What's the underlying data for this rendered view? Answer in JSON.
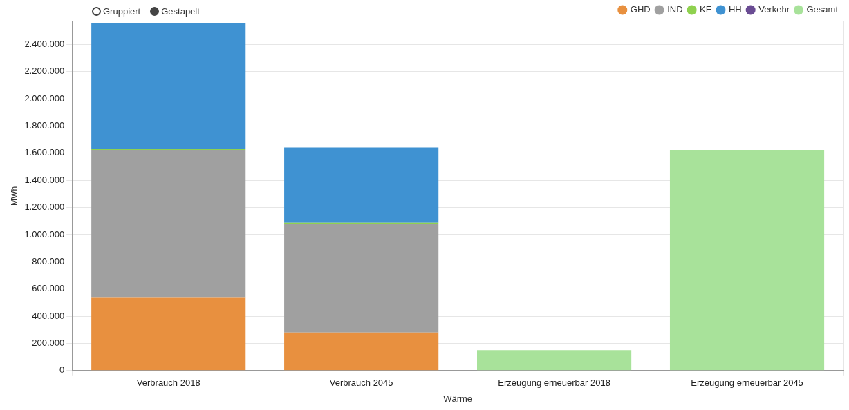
{
  "chart_data": {
    "type": "bar",
    "stacked": true,
    "xlabel": "Wärme",
    "ylabel": "MWh",
    "categories": [
      "Verbrauch 2018",
      "Verbrauch 2045",
      "Erzeugung erneuerbar 2018",
      "Erzeugung erneuerbar 2045"
    ],
    "series": [
      {
        "name": "GHD",
        "color": "#e8903f",
        "values": [
          535000,
          280000,
          null,
          null
        ]
      },
      {
        "name": "IND",
        "color": "#a0a0a0",
        "values": [
          1085000,
          800000,
          null,
          null
        ]
      },
      {
        "name": "KE",
        "color": "#8fd14f",
        "values": [
          10000,
          8000,
          null,
          null
        ]
      },
      {
        "name": "HH",
        "color": "#3f92d2",
        "values": [
          930000,
          555000,
          null,
          null
        ]
      },
      {
        "name": "Verkehr",
        "color": "#6a4c93",
        "values": [
          null,
          null,
          null,
          null
        ]
      },
      {
        "name": "Gesamt",
        "color": "#a8e29a",
        "values": [
          null,
          null,
          150000,
          1620000
        ]
      }
    ],
    "ylim": [
      0,
      2570000
    ],
    "yticks": [
      0,
      {
        "value": 200000,
        "label": "200.000"
      },
      {
        "value": 400000,
        "label": "400.000"
      },
      {
        "value": 600000,
        "label": "600.000"
      },
      {
        "value": 800000,
        "label": "800.000"
      },
      {
        "value": 1000000,
        "label": "1.000.000"
      },
      {
        "value": 1200000,
        "label": "1.200.000"
      },
      {
        "value": 1400000,
        "label": "1.400.000"
      },
      {
        "value": 1600000,
        "label": "1.600.000"
      },
      {
        "value": 1800000,
        "label": "1.800.000"
      },
      {
        "value": 2000000,
        "label": "2.000.000"
      },
      {
        "value": 2200000,
        "label": "2.200.000"
      },
      {
        "value": 2400000,
        "label": "2.400.000"
      }
    ],
    "grid": true,
    "legend": "top right",
    "annotations": [
      "Gruppiert",
      "Gestapelt"
    ]
  }
}
